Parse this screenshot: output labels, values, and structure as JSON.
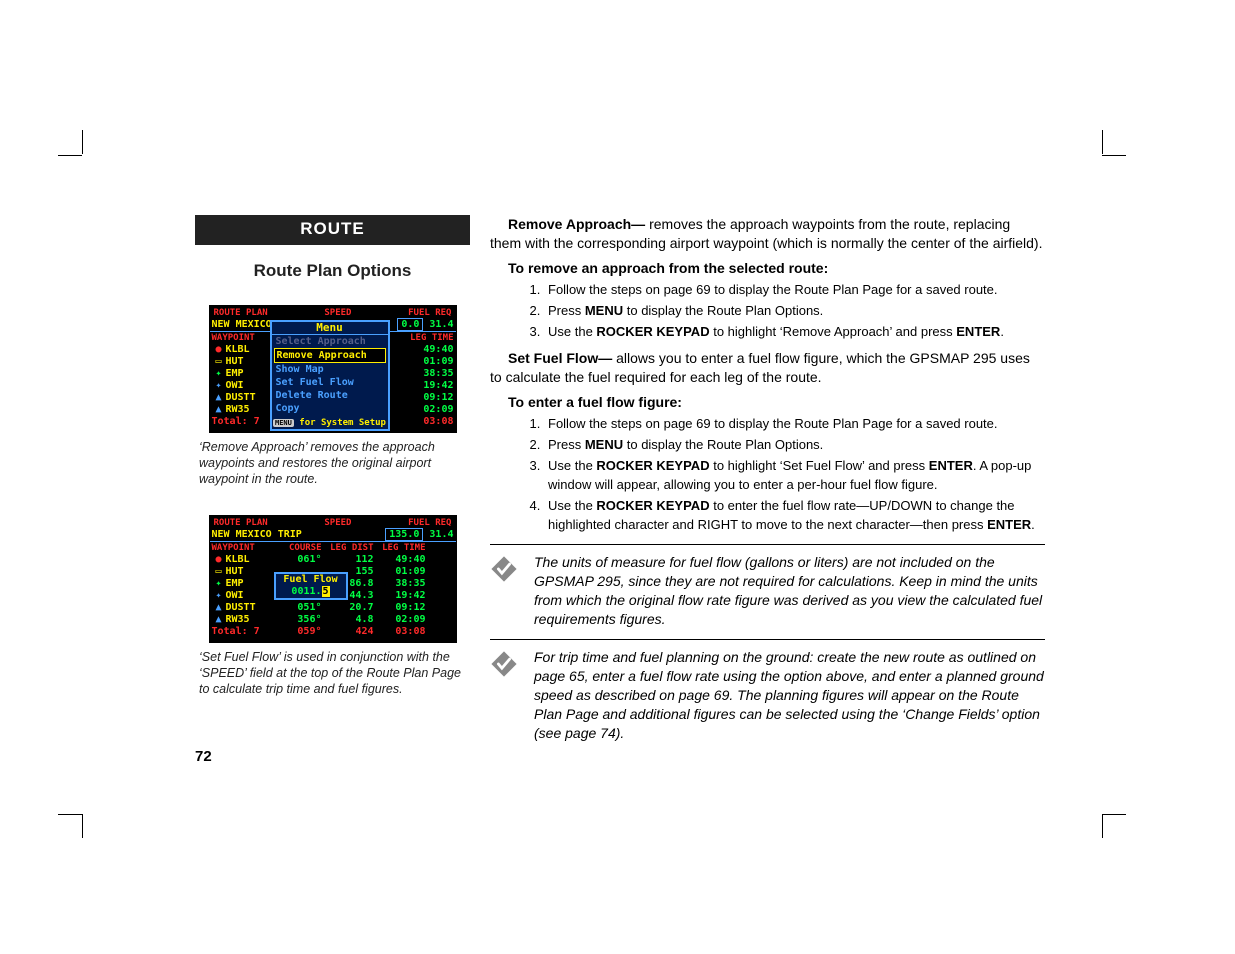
{
  "header": {
    "section": "ROUTE",
    "subhead": "Route Plan Options"
  },
  "screenshot1": {
    "top": {
      "left": "ROUTE PLAN",
      "mid": "SPEED",
      "right": "FUEL REQ"
    },
    "title": "NEW MEXICO",
    "speed_box": "0.0",
    "fuel": "31.4",
    "col_headers": [
      "WAYPOINT",
      "LEG TIME"
    ],
    "rows": [
      {
        "icon": "●",
        "icon_color": "#ff2a2a",
        "wp": "KLBL",
        "time": "49:40"
      },
      {
        "icon": "▭",
        "icon_color": "#ffee00",
        "wp": "HUT",
        "time": "01:09"
      },
      {
        "icon": "✦",
        "icon_color": "#00ff44",
        "wp": "EMP",
        "time": "38:35"
      },
      {
        "icon": "✦",
        "icon_color": "#4aa0ff",
        "wp": "OWI",
        "time": "19:42"
      },
      {
        "icon": "▲",
        "icon_color": "#4aa0ff",
        "wp": "DUSTT",
        "time": "09:12"
      },
      {
        "icon": "▲",
        "icon_color": "#4aa0ff",
        "wp": "RW35",
        "time": "02:09"
      }
    ],
    "total": {
      "label": "Total: 7",
      "time": "03:08"
    },
    "menu": {
      "title": "Menu",
      "items": [
        {
          "label": "Select Approach",
          "state": "dis"
        },
        {
          "label": "Remove Approach",
          "state": "sel"
        },
        {
          "label": "Show Map",
          "state": ""
        },
        {
          "label": "Set Fuel Flow",
          "state": ""
        },
        {
          "label": "Delete Route",
          "state": ""
        },
        {
          "label": "Copy",
          "state": ""
        }
      ],
      "foot_btn": "MENU",
      "foot": "for System Setup"
    },
    "caption": "‘Remove Approach’ removes the approach waypoints and restores the original airport waypoint in the route."
  },
  "screenshot2": {
    "top": {
      "left": "ROUTE PLAN",
      "mid": "SPEED",
      "right": "FUEL REQ"
    },
    "title": "NEW MEXICO TRIP",
    "speed_box": "135.0",
    "fuel": "31.4",
    "col_headers": [
      "WAYPOINT",
      "COURSE",
      "LEG DIST",
      "LEG TIME"
    ],
    "rows": [
      {
        "icon": "●",
        "icon_color": "#ff2a2a",
        "wp": "KLBL",
        "c1": "061°",
        "c2": "112",
        "c3": "49:40"
      },
      {
        "icon": "▭",
        "icon_color": "#ffee00",
        "wp": "HUT",
        "c1": "",
        "c2": "155",
        "c3": "01:09"
      },
      {
        "icon": "✦",
        "icon_color": "#00ff44",
        "wp": "EMP",
        "c1": "",
        "c2": "86.8",
        "c3": "38:35"
      },
      {
        "icon": "✦",
        "icon_color": "#4aa0ff",
        "wp": "OWI",
        "c1": "",
        "c2": "44.3",
        "c3": "19:42"
      },
      {
        "icon": "▲",
        "icon_color": "#4aa0ff",
        "wp": "DUSTT",
        "c1": "051°",
        "c2": "20.7",
        "c3": "09:12"
      },
      {
        "icon": "▲",
        "icon_color": "#4aa0ff",
        "wp": "RW35",
        "c1": "356°",
        "c2": "4.8",
        "c3": "02:09"
      }
    ],
    "total": {
      "label": "Total: 7",
      "c1": "059°",
      "c2": "424",
      "c3": "03:08"
    },
    "fuel_popup": {
      "title": "Fuel Flow",
      "value_pre": "0011.",
      "value_hl": "5"
    },
    "caption": "‘Set Fuel Flow’ is used in conjunction with the ‘SPEED’ field at the top of the Route Plan Page to calculate trip time and fuel figures."
  },
  "body": {
    "p1_lead": "Remove Approach—",
    "p1": " removes the approach waypoints from the route, replacing them with the corresponding airport waypoint (which is normally the center of the airfield).",
    "h1": "To remove an approach from the selected route:",
    "s1": [
      "Follow the steps on page 69 to display the Route Plan Page for a saved route.",
      "Press <strong>MENU</strong> to display the Route Plan Options.",
      "Use the <strong>ROCKER KEYPAD</strong> to highlight ‘Remove Approach’ and press <strong>ENTER</strong>."
    ],
    "p2_lead": "Set Fuel Flow—",
    "p2": " allows you to enter a fuel flow figure, which the GPSMAP 295 uses to calculate the fuel required for each leg of the route.",
    "h2": "To enter a fuel flow figure:",
    "s2": [
      "Follow the steps on page 69 to display the Route Plan Page for a saved route.",
      "Press <strong>MENU</strong> to display the Route Plan Options.",
      "Use the <strong>ROCKER KEYPAD</strong> to highlight ‘Set Fuel Flow’ and press <strong>ENTER</strong>. A pop-up window will appear, allowing you to enter a per-hour fuel flow figure.",
      "Use the <strong>ROCKER KEYPAD</strong> to enter the fuel flow rate—UP/DOWN to change the highlighted character and RIGHT to move to the next character—then press <strong>ENTER</strong>."
    ],
    "note1": "The units of measure for fuel flow (gallons or liters) are not included on the GPSMAP 295, since they are not required for calculations. Keep in mind the units from which the original flow rate figure was derived as you view the calculated fuel requirements figures.",
    "note2": "For trip time and fuel planning on the ground: create the new route as outlined on page 65, enter a fuel flow rate using the option above, and enter a planned ground speed as described on page 69. The planning figures will appear on the Route Plan Page and additional figures can be selected  using the ‘Change Fields’ option (see page 74)."
  },
  "page_number": "72"
}
